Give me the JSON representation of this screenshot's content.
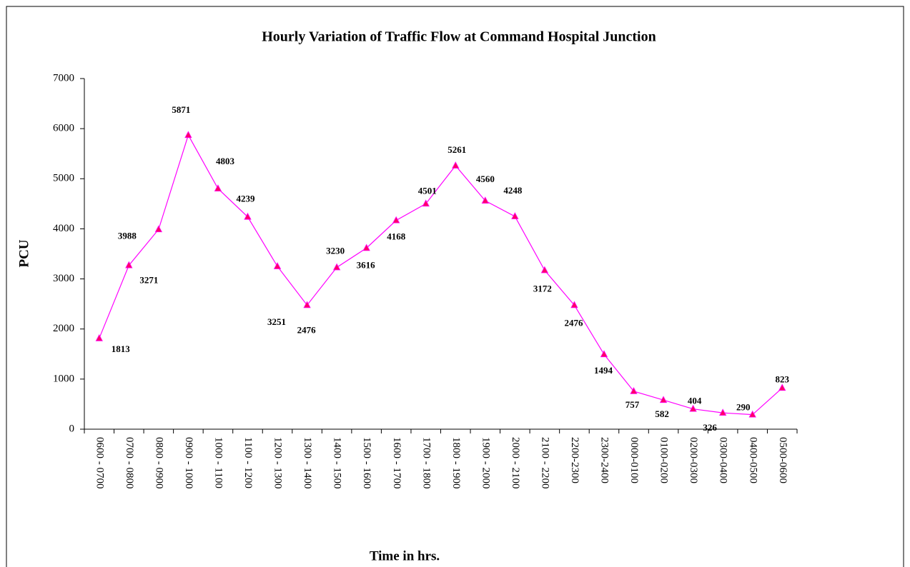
{
  "chart_data": {
    "type": "line",
    "title": "Hourly Variation of Traffic Flow at Command Hospital Junction",
    "x_label": "Time in hrs.",
    "y_label": "PCU",
    "categories": [
      "0600 - 0700",
      "0700 - 0800",
      "0800 - 0900",
      "0900 - 1000",
      "1000 - 1100",
      "1100 - 1200",
      "1200 - 1300",
      "1300 - 1400",
      "1400 - 1500",
      "1500 - 1600",
      "1600 - 1700",
      "1700 - 1800",
      "1800 - 1900",
      "1900 - 2000",
      "2000 - 2100",
      "2100 - 2200",
      "2200-2300",
      "2300-2400",
      "0000-0100",
      "0100-0200",
      "0200-0300",
      "0300-0400",
      "0400-0500",
      "0500-0600"
    ],
    "series": [
      {
        "name": "PCU",
        "color": "#ff00ff",
        "marker_color": "#ff0066",
        "values": [
          1813,
          3271,
          3988,
          5871,
          4803,
          4239,
          3251,
          2476,
          3230,
          3616,
          4168,
          4501,
          5261,
          4560,
          4248,
          3172,
          2476,
          1494,
          757,
          582,
          404,
          326,
          290,
          823
        ]
      }
    ],
    "ylim": [
      0,
      7000
    ],
    "yticks": [
      0,
      1000,
      2000,
      3000,
      4000,
      5000,
      6000,
      7000
    ],
    "grid": false,
    "legend": false
  }
}
